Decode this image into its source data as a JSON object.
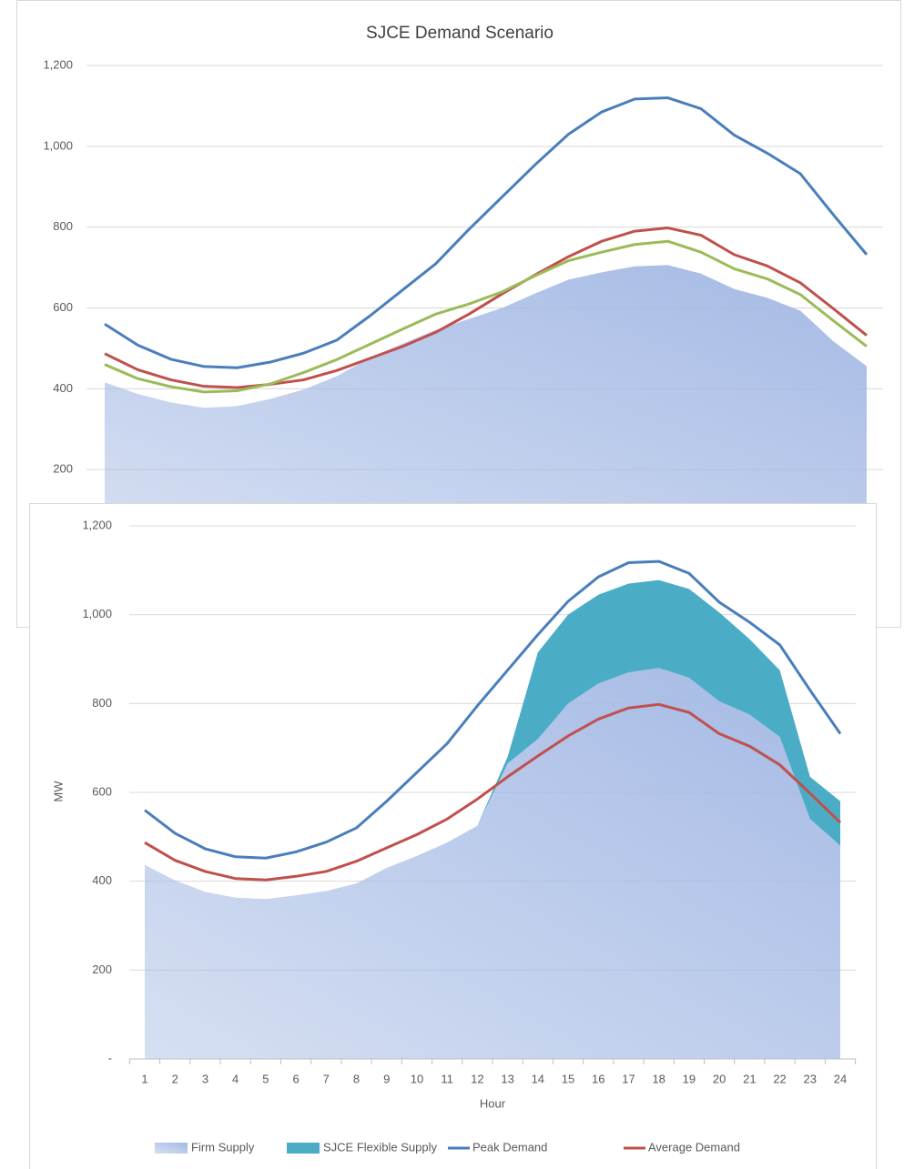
{
  "chart_data": [
    {
      "type": "line",
      "title": "SJCE Demand Scenario",
      "x": [
        1,
        2,
        3,
        4,
        5,
        6,
        7,
        8,
        9,
        10,
        11,
        12,
        13,
        14,
        15,
        16,
        17,
        18,
        19,
        20,
        21,
        22,
        23,
        24
      ],
      "xlim": [
        1,
        24
      ],
      "ylim": [
        0,
        1200
      ],
      "yticks": [
        200,
        400,
        600,
        800,
        {
          "value": 1000,
          "label": "1,000"
        },
        {
          "value": 1200,
          "label": "1,200"
        }
      ],
      "grid": true,
      "series": [
        {
          "kind": "area",
          "color": "#a4b9e4",
          "values": [
            416,
            387,
            366,
            353,
            357,
            375,
            398,
            431,
            476,
            512,
            546,
            573,
            600,
            636,
            670,
            688,
            703,
            706,
            685,
            647,
            625,
            593,
            517,
            456
          ]
        },
        {
          "kind": "line",
          "color": "#4a7ebb",
          "values": [
            560,
            508,
            473,
            455,
            452,
            466,
            488,
            520,
            580,
            645,
            710,
            795,
            875,
            955,
            1030,
            1085,
            1117,
            1120,
            1093,
            1028,
            983,
            932,
            830,
            732
          ]
        },
        {
          "kind": "line",
          "color": "#c0504d",
          "values": [
            487,
            447,
            422,
            406,
            403,
            411,
            422,
            445,
            475,
            505,
            540,
            585,
            635,
            682,
            727,
            765,
            790,
            798,
            780,
            732,
            704,
            662,
            598,
            532
          ]
        },
        {
          "kind": "line",
          "color": "#9bbb59",
          "values": [
            460,
            425,
            405,
            392,
            395,
            412,
            440,
            472,
            510,
            548,
            585,
            610,
            640,
            680,
            717,
            738,
            757,
            765,
            738,
            697,
            672,
            633,
            568,
            505
          ]
        }
      ]
    },
    {
      "type": "line",
      "x_label": "Hour",
      "y_label": "MW",
      "categories": [
        "1",
        "2",
        "3",
        "4",
        "5",
        "6",
        "7",
        "8",
        "9",
        "10",
        "11",
        "12",
        "13",
        "14",
        "15",
        "16",
        "17",
        "18",
        "19",
        "20",
        "21",
        "22",
        "23",
        "24"
      ],
      "ylim": [
        0,
        1200
      ],
      "yticks": [
        {
          "value": 0,
          "label": "-"
        },
        200,
        400,
        600,
        800,
        {
          "value": 1000,
          "label": "1,000"
        },
        {
          "value": 1200,
          "label": "1,200"
        }
      ],
      "grid": true,
      "legend": "bottom",
      "series": [
        {
          "name": "Firm Supply",
          "kind": "area",
          "color": "#a4b9e4",
          "values": [
            437,
            402,
            376,
            363,
            360,
            368,
            378,
            395,
            430,
            457,
            487,
            525,
            665,
            720,
            800,
            845,
            870,
            880,
            858,
            805,
            775,
            725,
            540,
            480
          ]
        },
        {
          "name": "SJCE Flexible Supply",
          "kind": "area",
          "color": "#4bacc6",
          "values": [
            0,
            0,
            0,
            0,
            0,
            0,
            0,
            0,
            0,
            0,
            0,
            0,
            15,
            195,
            200,
            200,
            200,
            198,
            200,
            200,
            170,
            150,
            95,
            100
          ]
        },
        {
          "name": "Peak Demand",
          "kind": "line",
          "color": "#4a7ebb",
          "values": [
            560,
            508,
            473,
            455,
            452,
            466,
            488,
            520,
            580,
            645,
            710,
            795,
            875,
            955,
            1030,
            1085,
            1117,
            1120,
            1093,
            1028,
            983,
            932,
            830,
            732
          ]
        },
        {
          "name": "Average Demand",
          "kind": "line",
          "color": "#c0504d",
          "values": [
            487,
            447,
            422,
            406,
            403,
            411,
            422,
            445,
            475,
            505,
            540,
            585,
            635,
            682,
            727,
            765,
            790,
            798,
            780,
            732,
            704,
            662,
            598,
            532
          ]
        }
      ]
    }
  ]
}
